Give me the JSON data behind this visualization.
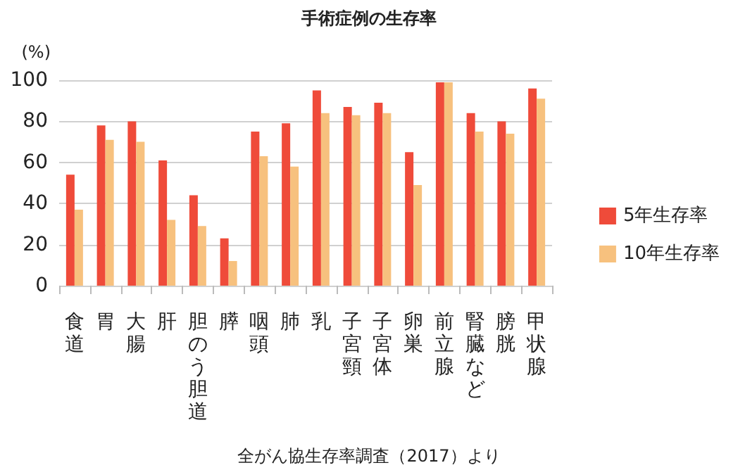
{
  "chart_data": {
    "type": "bar",
    "title": "手術症例の生存率",
    "ylabel": "(%)",
    "annotations": [
      "全がん協生存率調査（2017）より"
    ],
    "categories": [
      "食道",
      "胃",
      "大腸",
      "肝",
      "胆のう胆道",
      "膵",
      "咽頭",
      "肺",
      "乳",
      "子宮頸",
      "子宮体",
      "卵巣",
      "前立腺",
      "腎臓など",
      "膀胱",
      "甲状腺"
    ],
    "series": [
      {
        "name": "5年生存率",
        "color": "#ef4b3a",
        "values": [
          54,
          78,
          80,
          61,
          44,
          23,
          75,
          79,
          95,
          87,
          89,
          65,
          99,
          84,
          80,
          96
        ]
      },
      {
        "name": "10年生存率",
        "color": "#f7c17e",
        "values": [
          37,
          71,
          70,
          32,
          29,
          12,
          63,
          58,
          84,
          83,
          84,
          49,
          99,
          75,
          74,
          91
        ]
      }
    ],
    "ylim": [
      0,
      100
    ],
    "yticks": [
      0,
      20,
      40,
      60,
      80,
      100
    ],
    "grid": "y",
    "legend": "right"
  }
}
